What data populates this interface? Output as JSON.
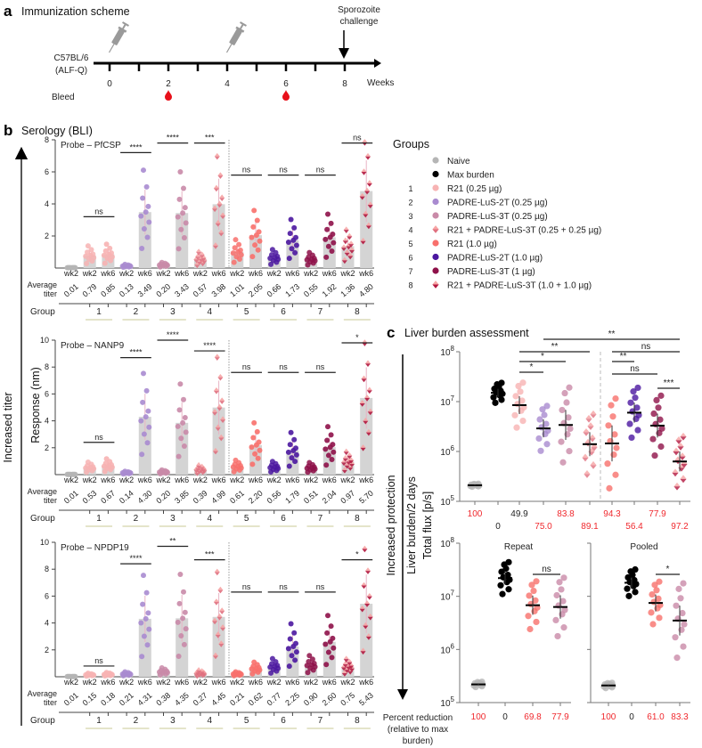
{
  "panel_a": {
    "label": "a",
    "title": "Immunization scheme",
    "strain": [
      "C57BL/6",
      "(ALF-Q)"
    ],
    "week_ticks": [
      "0",
      "2",
      "4",
      "6",
      "8"
    ],
    "weeks_label": "Weeks",
    "bleed_label": "Bleed",
    "challenge_label": [
      "Sporozoite",
      "challenge"
    ],
    "immunization_weeks": [
      0,
      4
    ],
    "bleed_weeks": [
      2,
      6
    ],
    "challenge_week": 8,
    "icons": {
      "immunization": "syringe-icon",
      "bleed": "blood-drop-icon",
      "challenge": "arrow-down-icon"
    },
    "bleed_color": "#e8101a"
  },
  "panel_b": {
    "label": "b",
    "title": "Serology (BLI)",
    "side_label": "Increased titer",
    "ylabel": "Response (nm)",
    "avg_label": [
      "Average",
      "titer"
    ],
    "group_label": "Group"
  },
  "legend": {
    "title": "Groups",
    "items": [
      {
        "num": "",
        "label": "Naive",
        "color": "#b5b5b5",
        "shape": "circle"
      },
      {
        "num": "",
        "label": "Max burden",
        "color": "#000000",
        "shape": "circle"
      },
      {
        "num": "1",
        "label": "R21 (0.25 µg)",
        "color": "#f7b3b3",
        "shape": "circle"
      },
      {
        "num": "2",
        "label": "PADRE-LuS-2T (0.25 µg)",
        "color": "#a98bd0",
        "shape": "circle"
      },
      {
        "num": "3",
        "label": "PADRE-LuS-3T (0.25 µg)",
        "color": "#c98aa8",
        "shape": "circle"
      },
      {
        "num": "4",
        "label": "R21 + PADRE-LuS-3T (0.25 + 0.25 µg)",
        "color": "#e0707f",
        "shape": "diamond"
      },
      {
        "num": "5",
        "label": "R21 (1.0 µg)",
        "color": "#f8706c",
        "shape": "circle"
      },
      {
        "num": "6",
        "label": "PADRE-LuS-2T (1.0 µg)",
        "color": "#4b17a0",
        "shape": "circle"
      },
      {
        "num": "7",
        "label": "PADRE-LuS-3T (1 µg)",
        "color": "#8e1149",
        "shape": "circle"
      },
      {
        "num": "8",
        "label": "R21 + PADRE-LuS-3T (1.0 + 1.0 µg)",
        "color": "#b3173f",
        "shape": "diamond"
      }
    ]
  },
  "panel_c": {
    "label": "c",
    "title": "Liver burden assessment",
    "side_label": "Increased protection",
    "ylabel": [
      "Liver burden/2 days",
      "Total flux [p/s]"
    ],
    "percent_label": [
      "Percent reduction",
      "(relative to max",
      "burden)"
    ],
    "highlight_color": "#f0282d"
  },
  "chart_data": [
    {
      "type": "bar",
      "title": "Probe – PfCSP",
      "ylabel": "Response (nm)",
      "ylim": [
        0,
        8
      ],
      "yticks": [
        "2",
        "4",
        "6",
        "8"
      ],
      "columns": [
        {
          "group": 0,
          "week": "wk2",
          "avg": "0.01"
        },
        {
          "group": 1,
          "week": "wk2",
          "avg": "0.79"
        },
        {
          "group": 1,
          "week": "wk6",
          "avg": "0.85"
        },
        {
          "group": 2,
          "week": "wk2",
          "avg": "0.13"
        },
        {
          "group": 2,
          "week": "wk6",
          "avg": "3.49"
        },
        {
          "group": 3,
          "week": "wk2",
          "avg": "0.20"
        },
        {
          "group": 3,
          "week": "wk6",
          "avg": "3.43"
        },
        {
          "group": 4,
          "week": "wk2",
          "avg": "0.57"
        },
        {
          "group": 4,
          "week": "wk6",
          "avg": "3.98"
        },
        {
          "group": 5,
          "week": "wk2",
          "avg": "1.01"
        },
        {
          "group": 5,
          "week": "wk6",
          "avg": "2.05"
        },
        {
          "group": 6,
          "week": "wk2",
          "avg": "0.66"
        },
        {
          "group": 6,
          "week": "wk6",
          "avg": "1.73"
        },
        {
          "group": 7,
          "week": "wk2",
          "avg": "0.55"
        },
        {
          "group": 7,
          "week": "wk6",
          "avg": "1.92"
        },
        {
          "group": 8,
          "week": "wk2",
          "avg": "1.36"
        },
        {
          "group": 8,
          "week": "wk6",
          "avg": "4.80"
        }
      ],
      "groups": [
        "1",
        "2",
        "3",
        "4",
        "5",
        "6",
        "7",
        "8"
      ],
      "significance": [
        {
          "group": 1,
          "label": "ns",
          "y": 3.2
        },
        {
          "group": 2,
          "label": "****",
          "y": 7.2
        },
        {
          "group": 3,
          "label": "****",
          "y": 7.8
        },
        {
          "group": 4,
          "label": "***",
          "y": 7.8
        },
        {
          "group": 5,
          "label": "ns",
          "y": 5.8
        },
        {
          "group": 6,
          "label": "ns",
          "y": 5.8
        },
        {
          "group": 7,
          "label": "ns",
          "y": 5.8
        },
        {
          "group": 8,
          "label": "ns",
          "y": 7.8
        }
      ]
    },
    {
      "type": "bar",
      "title": "Probe – NANP9",
      "ylabel": "Response (nm)",
      "ylim": [
        0,
        10
      ],
      "yticks": [
        "2",
        "4",
        "6",
        "8",
        "10"
      ],
      "columns": [
        {
          "group": 0,
          "week": "wk2",
          "avg": "0.01"
        },
        {
          "group": 1,
          "week": "wk2",
          "avg": "0.53"
        },
        {
          "group": 1,
          "week": "wk6",
          "avg": "0.67"
        },
        {
          "group": 2,
          "week": "wk2",
          "avg": "0.14"
        },
        {
          "group": 2,
          "week": "wk6",
          "avg": "4.30"
        },
        {
          "group": 3,
          "week": "wk2",
          "avg": "0.20"
        },
        {
          "group": 3,
          "week": "wk6",
          "avg": "3.85"
        },
        {
          "group": 4,
          "week": "wk2",
          "avg": "0.39"
        },
        {
          "group": 4,
          "week": "wk6",
          "avg": "4.99"
        },
        {
          "group": 5,
          "week": "wk2",
          "avg": "0.61"
        },
        {
          "group": 5,
          "week": "wk6",
          "avg": "2.20"
        },
        {
          "group": 6,
          "week": "wk2",
          "avg": "0.56"
        },
        {
          "group": 6,
          "week": "wk6",
          "avg": "1.79"
        },
        {
          "group": 7,
          "week": "wk2",
          "avg": "0.51"
        },
        {
          "group": 7,
          "week": "wk6",
          "avg": "2.04"
        },
        {
          "group": 8,
          "week": "wk2",
          "avg": "0.97"
        },
        {
          "group": 8,
          "week": "wk6",
          "avg": "5.70"
        }
      ],
      "groups": [
        "1",
        "2",
        "3",
        "4",
        "5",
        "6",
        "7",
        "8"
      ],
      "significance": [
        {
          "group": 1,
          "label": "ns",
          "y": 2.4
        },
        {
          "group": 2,
          "label": "****",
          "y": 8.7
        },
        {
          "group": 3,
          "label": "****",
          "y": 10.0
        },
        {
          "group": 4,
          "label": "****",
          "y": 9.2
        },
        {
          "group": 5,
          "label": "ns",
          "y": 7.6
        },
        {
          "group": 6,
          "label": "ns",
          "y": 7.6
        },
        {
          "group": 7,
          "label": "ns",
          "y": 7.6
        },
        {
          "group": 8,
          "label": "*",
          "y": 9.8
        }
      ]
    },
    {
      "type": "bar",
      "title": "Probe – NPDP19",
      "ylabel": "Response (nm)",
      "ylim": [
        0,
        10
      ],
      "yticks": [
        "2",
        "4",
        "6",
        "8",
        "10"
      ],
      "columns": [
        {
          "group": 0,
          "week": "wk2",
          "avg": "0.01"
        },
        {
          "group": 1,
          "week": "wk2",
          "avg": "0.15"
        },
        {
          "group": 1,
          "week": "wk6",
          "avg": "0.18"
        },
        {
          "group": 2,
          "week": "wk2",
          "avg": "0.21"
        },
        {
          "group": 2,
          "week": "wk6",
          "avg": "4.31"
        },
        {
          "group": 3,
          "week": "wk2",
          "avg": "0.38"
        },
        {
          "group": 3,
          "week": "wk6",
          "avg": "4.35"
        },
        {
          "group": 4,
          "week": "wk2",
          "avg": "0.27"
        },
        {
          "group": 4,
          "week": "wk6",
          "avg": "4.45"
        },
        {
          "group": 5,
          "week": "wk2",
          "avg": "0.21"
        },
        {
          "group": 5,
          "week": "wk6",
          "avg": "0.62"
        },
        {
          "group": 6,
          "week": "wk2",
          "avg": "0.77"
        },
        {
          "group": 6,
          "week": "wk6",
          "avg": "2.25"
        },
        {
          "group": 7,
          "week": "wk2",
          "avg": "0.90"
        },
        {
          "group": 7,
          "week": "wk6",
          "avg": "2.60"
        },
        {
          "group": 8,
          "week": "wk2",
          "avg": "0.75"
        },
        {
          "group": 8,
          "week": "wk6",
          "avg": "5.43"
        }
      ],
      "groups": [
        "1",
        "2",
        "3",
        "4",
        "5",
        "6",
        "7",
        "8"
      ],
      "significance": [
        {
          "group": 1,
          "label": "ns",
          "y": 0.8
        },
        {
          "group": 2,
          "label": "****",
          "y": 8.4
        },
        {
          "group": 3,
          "label": "**",
          "y": 9.7
        },
        {
          "group": 4,
          "label": "***",
          "y": 8.7
        },
        {
          "group": 5,
          "label": "ns",
          "y": 6.3
        },
        {
          "group": 6,
          "label": "ns",
          "y": 6.3
        },
        {
          "group": 7,
          "label": "ns",
          "y": 6.3
        },
        {
          "group": 8,
          "label": "*",
          "y": 8.7
        }
      ]
    },
    {
      "type": "scatter",
      "title": "Liver burden assessment",
      "yscale": "log",
      "ylim": [
        100000,
        100000000
      ],
      "yticks": [
        "8",
        "7",
        "6",
        "5"
      ],
      "columns": [
        {
          "group": 0,
          "median": 210000,
          "spread": 0.03,
          "pct": "100",
          "pct_red": true
        },
        {
          "group": 1,
          "median": 15000000,
          "spread": 0.2,
          "pct": "0",
          "pct_red": false,
          "legend_idx": 1
        },
        {
          "group": 1,
          "median": 8500000,
          "spread": 0.45,
          "pct": "49.9",
          "pct_red": false
        },
        {
          "group": 2,
          "median": 2900000,
          "spread": 0.45,
          "pct": "75.0",
          "pct_red": true
        },
        {
          "group": 3,
          "median": 3400000,
          "spread": 0.75,
          "pct": "83.8",
          "pct_red": true
        },
        {
          "group": 4,
          "median": 1400000,
          "spread": 0.6,
          "pct": "89.1",
          "pct_red": true
        },
        {
          "group": 5,
          "median": 1450000,
          "spread": 0.9,
          "pct": "94.3",
          "pct_red": true
        },
        {
          "group": 6,
          "median": 6000000,
          "spread": 0.5,
          "pct": "56.4",
          "pct_red": true
        },
        {
          "group": 7,
          "median": 3300000,
          "spread": 0.6,
          "pct": "77.9",
          "pct_red": true
        },
        {
          "group": 8,
          "median": 630000,
          "spread": 0.5,
          "pct": "97.2",
          "pct_red": true
        }
      ],
      "significance": [
        {
          "from": 4,
          "to": 10,
          "label": "**"
        },
        {
          "from": 7,
          "to": 10,
          "label": "ns"
        },
        {
          "from": 3,
          "to": 6,
          "label": "**"
        },
        {
          "from": 3,
          "to": 5,
          "label": "*"
        },
        {
          "from": 3,
          "to": 4,
          "label": "*"
        },
        {
          "from": 7,
          "to": 8,
          "label": "**"
        },
        {
          "from": 7,
          "to": 9,
          "label": "ns"
        },
        {
          "from": 9,
          "to": 10,
          "label": "***"
        }
      ]
    },
    {
      "type": "scatter",
      "title": "Repeat",
      "yscale": "log",
      "ylim": [
        100000,
        100000000
      ],
      "yticks": [
        "8",
        "7",
        "6",
        "5"
      ],
      "columns": [
        {
          "legend_idx": 0,
          "median": 220000,
          "spread": 0.05,
          "pct": "100"
        },
        {
          "legend_idx": 1,
          "median": 22000000,
          "spread": 0.3,
          "pct": "0"
        },
        {
          "legend_idx": 6,
          "median": 6800000,
          "spread": 0.45,
          "pct": "69.8"
        },
        {
          "legend_idx": 4,
          "median": 6300000,
          "spread": 0.55,
          "pct": "77.9"
        }
      ],
      "significance": [
        {
          "from": 3,
          "to": 4,
          "label": "ns"
        }
      ]
    },
    {
      "type": "scatter",
      "title": "Pooled",
      "yscale": "log",
      "ylim": [
        100000,
        100000000
      ],
      "columns": [
        {
          "legend_idx": 0,
          "median": 210000,
          "spread": 0.05,
          "pct": "100"
        },
        {
          "legend_idx": 1,
          "median": 18000000,
          "spread": 0.25,
          "pct": "0"
        },
        {
          "legend_idx": 6,
          "median": 7500000,
          "spread": 0.4,
          "pct": "61.0"
        },
        {
          "legend_idx": 4,
          "median": 3500000,
          "spread": 0.7,
          "pct": "83.3"
        }
      ],
      "significance": [
        {
          "from": 3,
          "to": 4,
          "label": "*"
        }
      ]
    }
  ]
}
